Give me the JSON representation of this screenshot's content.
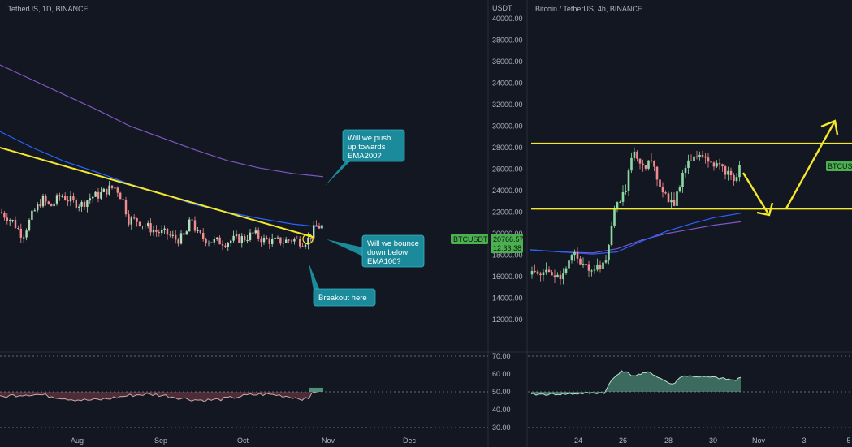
{
  "colors": {
    "background": "#131722",
    "up": "#26a69a",
    "down": "#ef5350",
    "up_light": "#b2dfb9",
    "down_light": "#f28b90",
    "ema100": "#2962ff",
    "ema200": "#7e57c2",
    "trendline": "#f5e82a",
    "callout": "#1b8a9b",
    "badge": "#4caf50"
  },
  "left_chart": {
    "title": "...TetherUS, 1D, BINANCE",
    "month_labels": [
      "Aug",
      "Sep",
      "Oct",
      "Nov",
      "Dec"
    ],
    "callouts": {
      "ema200": "Will we push up towards EMA200?",
      "ema100": "Will we bounce down below EMA100?",
      "breakout": "Breakout here"
    }
  },
  "price_axis": {
    "currency": "USDT",
    "ticks": [
      "40000.00",
      "38000.00",
      "36000.00",
      "34000.00",
      "32000.00",
      "30000.00",
      "28000.00",
      "26000.00",
      "24000.00",
      "22000.00",
      "20000.00",
      "18000.00",
      "16000.00",
      "14000.00",
      "12000.00"
    ],
    "symbol_badge": "BTCUSDT",
    "last_price": "20766.57",
    "countdown": "12:33:38"
  },
  "rsi_axis": {
    "ticks": [
      "70.00",
      "60.00",
      "50.00",
      "40.00",
      "30.00"
    ]
  },
  "right_chart": {
    "title": "Bitcoin / TetherUS, 4h, BINANCE",
    "date_labels": [
      "24",
      "26",
      "28",
      "30",
      "Nov",
      "3",
      "5"
    ],
    "symbol_badge": "BTCUSD"
  },
  "chart_data": [
    {
      "type": "candlestick",
      "symbol": "BTCUSDT",
      "timeframe": "1D",
      "exchange": "BINANCE",
      "x_range": [
        "Jul",
        "Dec"
      ],
      "y_range": [
        11000,
        41000
      ],
      "last_price": 20766.57,
      "indicators": {
        "EMA100_last": 20600,
        "EMA200_last": 25300,
        "trendline": {
          "from": [
            28000,
            "Jul"
          ],
          "to": [
            19600,
            "late Oct"
          ]
        },
        "RSI_last": 50
      },
      "series": [
        {
          "x": "Jul",
          "close": 21400
        },
        {
          "x": "Aug",
          "close": 24500
        },
        {
          "x": "Sep",
          "close": 19800
        },
        {
          "x": "Oct",
          "close": 19400
        },
        {
          "x": "Nov",
          "close": 20766.57
        }
      ]
    },
    {
      "type": "candlestick",
      "symbol": "BTCUSDT",
      "timeframe": "4h",
      "exchange": "BINANCE",
      "x_range": [
        "22",
        "5"
      ],
      "y_range": [
        11000,
        41000
      ],
      "horizontal_levels": [
        28400,
        22300
      ],
      "projection": "dip to ~22000 then rally above ~30500",
      "series": [
        {
          "x": "23",
          "close": 16300
        },
        {
          "x": "24",
          "close": 17200
        },
        {
          "x": "25",
          "close": 22600
        },
        {
          "x": "26",
          "close": 27500
        },
        {
          "x": "27",
          "close": 25600
        },
        {
          "x": "28",
          "close": 24300
        },
        {
          "x": "29",
          "close": 27600
        },
        {
          "x": "30",
          "close": 26000
        },
        {
          "x": "31",
          "close": 27500
        }
      ]
    }
  ]
}
